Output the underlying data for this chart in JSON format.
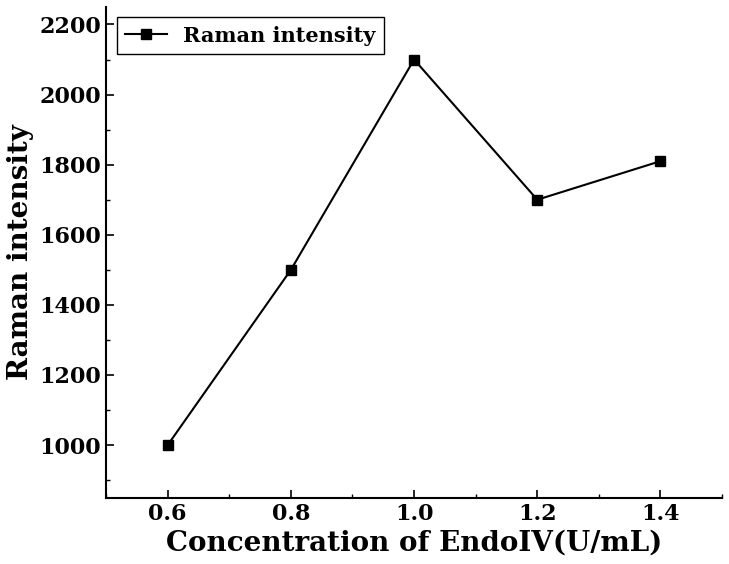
{
  "x": [
    0.6,
    0.8,
    1.0,
    1.2,
    1.4
  ],
  "y": [
    1000,
    1500,
    2100,
    1700,
    1810
  ],
  "line_color": "#000000",
  "marker": "s",
  "marker_color": "#000000",
  "marker_size": 7,
  "line_width": 1.5,
  "xlabel": "Concentration of EndoIV(U/mL)",
  "ylabel": "Raman intensity",
  "xlabel_fontsize": 20,
  "ylabel_fontsize": 20,
  "tick_fontsize": 16,
  "legend_label": "Raman intensity",
  "legend_fontsize": 15,
  "xlim": [
    0.5,
    1.5
  ],
  "ylim": [
    850,
    2250
  ],
  "yticks": [
    1000,
    1200,
    1400,
    1600,
    1800,
    2000,
    2200
  ],
  "xticks": [
    0.6,
    0.8,
    1.0,
    1.2,
    1.4
  ],
  "background_color": "#ffffff",
  "spine_color": "#000000",
  "figsize": [
    7.29,
    5.64
  ],
  "dpi": 100
}
